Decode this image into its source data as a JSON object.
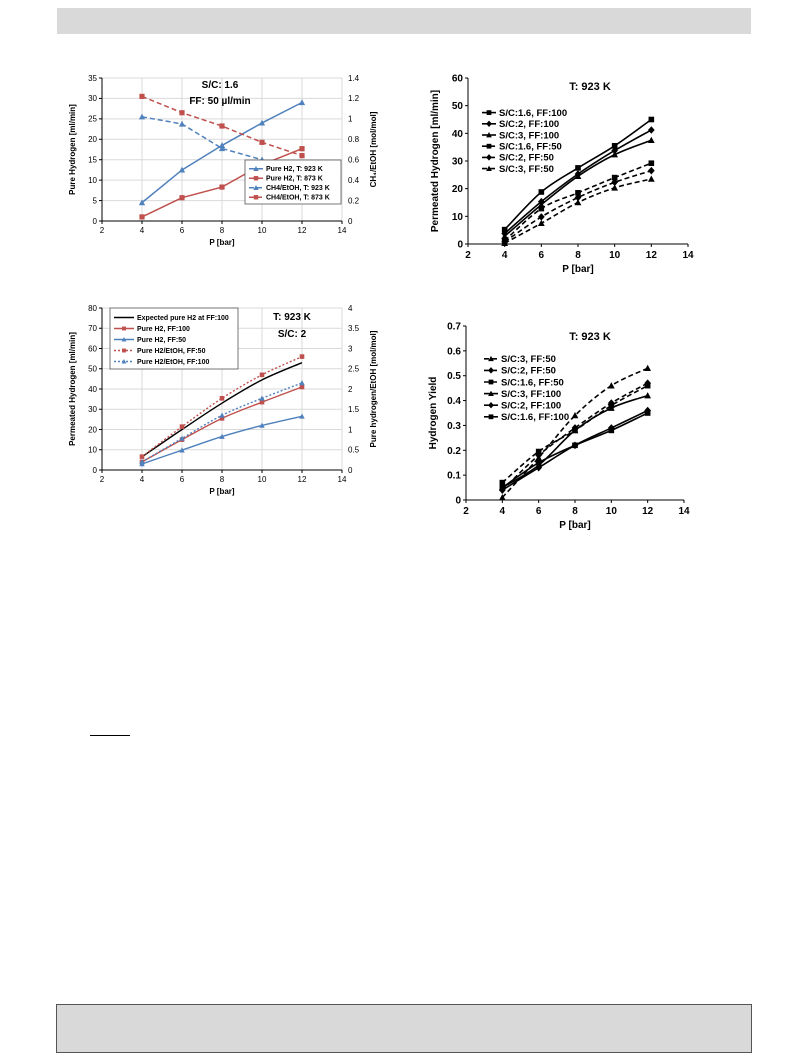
{
  "chart_data": [
    {
      "id": "c1",
      "type": "line",
      "annotations": [
        "S/C: 1.6",
        "FF: 50 µl/min"
      ],
      "xlabel": "P [bar]",
      "ylabel": "Pure Hydrogen [ml/min]",
      "ylabel2": "CH₄/EtOH [mol/mol]",
      "xlim": [
        2,
        14
      ],
      "xticks": [
        2,
        4,
        6,
        8,
        10,
        12,
        14
      ],
      "ylim": [
        0,
        35
      ],
      "yticks": [
        0,
        5,
        10,
        15,
        20,
        25,
        30,
        35
      ],
      "y2lim": [
        0,
        1.4
      ],
      "y2ticks": [
        0,
        0.2,
        0.4,
        0.6,
        0.8,
        1,
        1.2,
        1.4
      ],
      "legend_position": "bottom-right",
      "series": [
        {
          "name": "Pure H2, T: 923 K",
          "color": "#4f81bd",
          "dash": "solid",
          "marker": "triangle",
          "axis": "left",
          "x": [
            4,
            6,
            8,
            10,
            12
          ],
          "y": [
            4.5,
            12.5,
            18.5,
            24,
            29
          ]
        },
        {
          "name": "Pure H2, T: 873 K",
          "color": "#c0504d",
          "dash": "solid",
          "marker": "square",
          "axis": "left",
          "x": [
            4,
            6,
            8,
            10,
            12
          ],
          "y": [
            1,
            5.7,
            8.3,
            13.8,
            17.7
          ]
        },
        {
          "name": "CH4/EtOH, T: 923 K",
          "color": "#4f81bd",
          "dash": "dashed",
          "marker": "triangle",
          "axis": "right",
          "x": [
            4,
            6,
            8,
            10,
            12
          ],
          "y": [
            1.02,
            0.95,
            0.71,
            0.6,
            0.46
          ]
        },
        {
          "name": "CH4/EtOH, T: 873 K",
          "color": "#c0504d",
          "dash": "dashed",
          "marker": "square",
          "axis": "right",
          "x": [
            4,
            6,
            8,
            10,
            12
          ],
          "y": [
            1.22,
            1.06,
            0.93,
            0.77,
            0.64
          ]
        }
      ]
    },
    {
      "id": "c2",
      "type": "line",
      "annotations": [
        "T: 923 K"
      ],
      "xlabel": "P [bar]",
      "ylabel": "Permeated Hydrogen [ml/min]",
      "xlim": [
        2,
        14
      ],
      "xticks": [
        2,
        4,
        6,
        8,
        10,
        12,
        14
      ],
      "ylim": [
        0,
        60
      ],
      "yticks": [
        0,
        10,
        20,
        30,
        40,
        50,
        60
      ],
      "legend_position": "top-left",
      "series": [
        {
          "name": "S/C:1.6, FF:100",
          "color": "#000000",
          "dash": "solid",
          "marker": "square",
          "x": [
            4,
            6,
            8,
            10,
            12
          ],
          "y": [
            5.2,
            18.8,
            27.5,
            35.5,
            45
          ]
        },
        {
          "name": "S/C:2, FF:100",
          "color": "#000000",
          "dash": "solid",
          "marker": "diamond",
          "x": [
            4,
            6,
            8,
            10,
            12
          ],
          "y": [
            3.8,
            15.3,
            25.3,
            33.8,
            41.2
          ]
        },
        {
          "name": "S/C:3, FF:100",
          "color": "#000000",
          "dash": "solid",
          "marker": "triangle",
          "x": [
            4,
            6,
            8,
            10,
            12
          ],
          "y": [
            2.8,
            14.2,
            24.5,
            32.3,
            37.5
          ]
        },
        {
          "name": "S/C:1.6, FF:50",
          "color": "#000000",
          "dash": "dashed",
          "marker": "square",
          "x": [
            4,
            6,
            8,
            10,
            12
          ],
          "y": [
            1.2,
            12.8,
            18.5,
            24,
            29.2
          ]
        },
        {
          "name": "S/C:2, FF:50",
          "color": "#000000",
          "dash": "dashed",
          "marker": "diamond",
          "x": [
            4,
            6,
            8,
            10,
            12
          ],
          "y": [
            0.8,
            9.8,
            16.8,
            22.3,
            26.5
          ]
        },
        {
          "name": "S/C:3, FF:50",
          "color": "#000000",
          "dash": "dashed",
          "marker": "triangle",
          "x": [
            4,
            6,
            8,
            10,
            12
          ],
          "y": [
            0.3,
            7.5,
            15,
            20.3,
            23.5
          ]
        }
      ]
    },
    {
      "id": "c3",
      "type": "line",
      "annotations": [
        "T: 923 K",
        "S/C: 2"
      ],
      "xlabel": "P [bar]",
      "ylabel": "Permeated Hydrogen [ml/min]",
      "ylabel2": "Pure hydrogen/EtOH [mol/mol]",
      "xlim": [
        2,
        14
      ],
      "xticks": [
        2,
        4,
        6,
        8,
        10,
        12,
        14
      ],
      "ylim": [
        0,
        80
      ],
      "yticks": [
        0,
        10,
        20,
        30,
        40,
        50,
        60,
        70,
        80
      ],
      "y2lim": [
        0,
        4
      ],
      "y2ticks": [
        0,
        0.5,
        1,
        1.5,
        2,
        2.5,
        3,
        3.5,
        4
      ],
      "legend_position": "top-left",
      "series": [
        {
          "name": "Expected pure H2 at FF:100",
          "color": "#000000",
          "dash": "solid",
          "marker": "none",
          "axis": "left",
          "x": [
            4,
            6,
            8,
            10,
            12
          ],
          "y": [
            6.5,
            20,
            33,
            44.5,
            53
          ]
        },
        {
          "name": "Pure H2, FF:100",
          "color": "#c0504d",
          "dash": "solid",
          "marker": "square",
          "axis": "left",
          "x": [
            4,
            6,
            8,
            10,
            12
          ],
          "y": [
            4,
            15,
            25.5,
            33.5,
            41
          ]
        },
        {
          "name": "Pure H2, FF:50",
          "color": "#4f81bd",
          "dash": "solid",
          "marker": "triangle",
          "axis": "left",
          "x": [
            4,
            6,
            8,
            10,
            12
          ],
          "y": [
            3,
            9.8,
            16.5,
            22,
            26.5
          ]
        },
        {
          "name": "Pure H2/EtOH, FF:50",
          "color": "#c0504d",
          "dash": "dotted",
          "marker": "square",
          "axis": "right",
          "x": [
            4,
            6,
            8,
            10,
            12
          ],
          "y": [
            0.33,
            1.07,
            1.77,
            2.35,
            2.8
          ]
        },
        {
          "name": "Pure H2/EtOH, FF:100",
          "color": "#4f81bd",
          "dash": "dotted",
          "marker": "triangle",
          "axis": "right",
          "x": [
            4,
            6,
            8,
            10,
            12
          ],
          "y": [
            0.2,
            0.78,
            1.35,
            1.77,
            2.15
          ]
        }
      ]
    },
    {
      "id": "c4",
      "type": "line",
      "annotations": [
        "T: 923 K"
      ],
      "xlabel": "P [bar]",
      "ylabel": "Hydrogen Yield",
      "xlim": [
        2,
        14
      ],
      "xticks": [
        2,
        4,
        6,
        8,
        10,
        12,
        14
      ],
      "ylim": [
        0,
        0.7
      ],
      "yticks": [
        0,
        0.1,
        0.2,
        0.3,
        0.4,
        0.5,
        0.6,
        0.7
      ],
      "legend_position": "top-left",
      "series": [
        {
          "name": "S/C:3, FF:50",
          "color": "#000000",
          "dash": "dashed",
          "marker": "triangle",
          "x": [
            4,
            6,
            8,
            10,
            12
          ],
          "y": [
            0.01,
            0.17,
            0.34,
            0.46,
            0.53
          ]
        },
        {
          "name": "S/C:2, FF:50",
          "color": "#000000",
          "dash": "dashed",
          "marker": "diamond",
          "x": [
            4,
            6,
            8,
            10,
            12
          ],
          "y": [
            0.04,
            0.18,
            0.29,
            0.39,
            0.47
          ]
        },
        {
          "name": "S/C:1.6, FF:50",
          "color": "#000000",
          "dash": "dashed",
          "marker": "square",
          "x": [
            4,
            6,
            8,
            10,
            12
          ],
          "y": [
            0.07,
            0.195,
            0.28,
            0.38,
            0.46
          ]
        },
        {
          "name": "S/C:3, FF:100",
          "color": "#000000",
          "dash": "solid",
          "marker": "triangle",
          "x": [
            4,
            6,
            8,
            10,
            12
          ],
          "y": [
            0.05,
            0.14,
            0.28,
            0.37,
            0.42
          ]
        },
        {
          "name": "S/C:2, FF:100",
          "color": "#000000",
          "dash": "solid",
          "marker": "diamond",
          "x": [
            4,
            6,
            8,
            10,
            12
          ],
          "y": [
            0.04,
            0.13,
            0.22,
            0.29,
            0.36
          ]
        },
        {
          "name": "S/C:1.6, FF:100",
          "color": "#000000",
          "dash": "solid",
          "marker": "square",
          "x": [
            4,
            6,
            8,
            10,
            12
          ],
          "y": [
            0.05,
            0.15,
            0.22,
            0.28,
            0.35
          ]
        }
      ]
    }
  ]
}
